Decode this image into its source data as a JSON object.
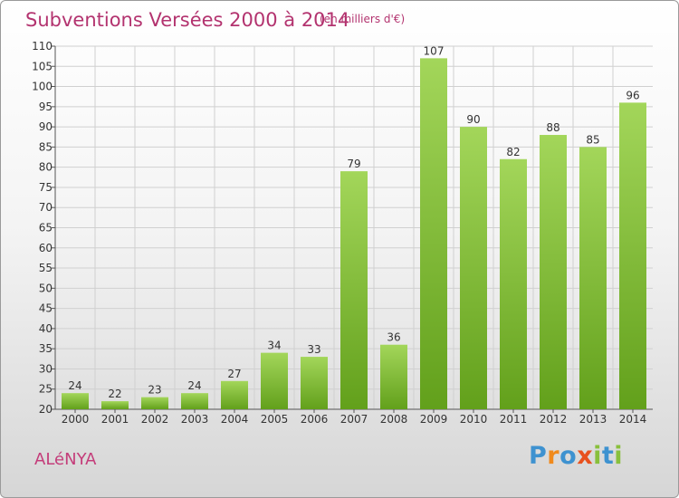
{
  "header": {
    "title": "Subventions Versées 2000 à 2014",
    "subtitle": "(en milliers d'€)"
  },
  "footer": {
    "commune": "ALéNYA",
    "logo_letters": [
      "P",
      "r",
      "o",
      "x",
      "i",
      "t",
      "i"
    ]
  },
  "colors": {
    "title": "#b3336f",
    "bar_light": "#a3d65a",
    "bar_dark": "#62a01b",
    "grid": "#d0d0d0"
  },
  "chart_data": {
    "type": "bar",
    "title": "Subventions Versées 2000 à 2014",
    "subtitle": "(en milliers d'€)",
    "categories": [
      "2000",
      "2001",
      "2002",
      "2003",
      "2004",
      "2005",
      "2006",
      "2007",
      "2008",
      "2009",
      "2010",
      "2011",
      "2012",
      "2013",
      "2014"
    ],
    "values": [
      24,
      22,
      23,
      24,
      27,
      34,
      33,
      79,
      36,
      107,
      90,
      82,
      88,
      85,
      96
    ],
    "ylim": [
      20,
      110
    ],
    "yticks": [
      20,
      25,
      30,
      35,
      40,
      45,
      50,
      55,
      60,
      65,
      70,
      75,
      80,
      85,
      90,
      95,
      100,
      105,
      110
    ],
    "grid": true,
    "xlabel": "",
    "ylabel": ""
  }
}
